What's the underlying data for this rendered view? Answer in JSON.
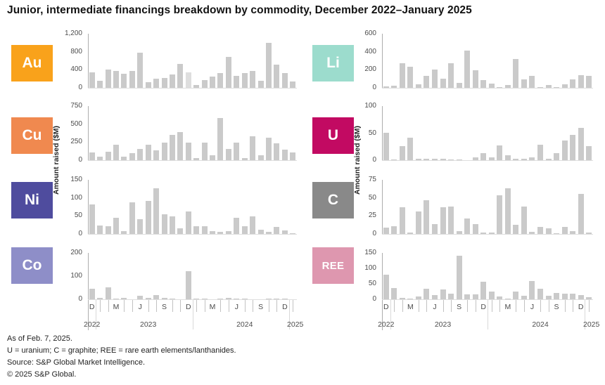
{
  "title": "Junior, intermediate financings breakdown by commodity, December 2022–January 2025",
  "y_axis_title": "Amount raised ($M)",
  "footer": {
    "as_of": "As of Feb. 7, 2025.",
    "abbreviations": "U = uranium; C = graphite; REE = rare earth elements/lanthanides.",
    "source": "Source: S&P Global Market Intelligence.",
    "copyright": "© 2025 S&P Global."
  },
  "panels": {
    "left": [
      "Au",
      "Cu",
      "Ni",
      "Co"
    ],
    "right": [
      "Li",
      "U",
      "C",
      "REE"
    ]
  },
  "bar_color": "#CACACA",
  "bar_color_light": "#DEDEDE",
  "xaxis": {
    "months": [
      "Dec 2022",
      "Jan 2023",
      "Feb 2023",
      "Mar 2023",
      "Apr 2023",
      "May 2023",
      "Jun 2023",
      "Jul 2023",
      "Aug 2023",
      "Sep 2023",
      "Oct 2023",
      "Nov 2023",
      "Dec 2023",
      "Jan 2024",
      "Feb 2024",
      "Mar 2024",
      "Apr 2024",
      "May 2024",
      "Jun 2024",
      "Jul 2024",
      "Aug 2024",
      "Sep 2024",
      "Oct 2024",
      "Nov 2024",
      "Dec 2024",
      "Jan 2025"
    ],
    "quarter_tick_indices": [
      0,
      3,
      6,
      9,
      12,
      15,
      18,
      21,
      24
    ],
    "quarter_tick_labels": [
      "D",
      "M",
      "J",
      "S",
      "D",
      "M",
      "J",
      "S",
      "D"
    ],
    "year_labels": [
      "2022",
      "2023",
      "2024",
      "2025"
    ],
    "year_boundaries_after": [
      0,
      12,
      24
    ]
  },
  "chart_data": [
    {
      "type": "bar",
      "commodity": "Au",
      "tile_color": "#F9A21B",
      "ylim": [
        0,
        1200
      ],
      "yticks": [
        0,
        400,
        800,
        1200
      ],
      "ytick_labels": [
        "0",
        "400",
        "800",
        "1,200"
      ],
      "light_indices": [
        12
      ],
      "values": [
        340,
        155,
        410,
        380,
        305,
        380,
        780,
        130,
        210,
        220,
        290,
        530,
        345,
        60,
        165,
        245,
        325,
        690,
        270,
        325,
        380,
        155,
        1005,
        510,
        325,
        140
      ]
    },
    {
      "type": "bar",
      "commodity": "Cu",
      "tile_color": "#F0894F",
      "ylim": [
        0,
        750
      ],
      "yticks": [
        0,
        250,
        500,
        750
      ],
      "ytick_labels": [
        "0",
        "250",
        "500",
        "750"
      ],
      "light_indices": [],
      "values": [
        110,
        45,
        115,
        210,
        45,
        100,
        155,
        210,
        140,
        245,
        355,
        385,
        240,
        25,
        245,
        65,
        580,
        155,
        240,
        30,
        335,
        65,
        315,
        235,
        150,
        110
      ]
    },
    {
      "type": "bar",
      "commodity": "Ni",
      "tile_color": "#4F4C9E",
      "ylim": [
        0,
        150
      ],
      "yticks": [
        0,
        50,
        100,
        150
      ],
      "ytick_labels": [
        "0",
        "50",
        "100",
        "150"
      ],
      "light_indices": [],
      "values": [
        82,
        24,
        21,
        44,
        8,
        87,
        41,
        92,
        127,
        55,
        49,
        15,
        62,
        22,
        22,
        7,
        5,
        8,
        44,
        21,
        48,
        11,
        5,
        20,
        9,
        2
      ]
    },
    {
      "type": "bar",
      "commodity": "Co",
      "tile_color": "#8E8EC8",
      "ylim": [
        0,
        200
      ],
      "yticks": [
        0,
        100,
        200
      ],
      "ytick_labels": [
        "0",
        "100",
        "200"
      ],
      "light_indices": [],
      "values": [
        46,
        7,
        50,
        1,
        6,
        0,
        15,
        6,
        19,
        6,
        1,
        0,
        120,
        1,
        2,
        0,
        4,
        7,
        2,
        1,
        0,
        0,
        3,
        4,
        1,
        0
      ]
    },
    {
      "type": "bar",
      "commodity": "Li",
      "tile_color": "#9CDCCD",
      "ylim": [
        0,
        600
      ],
      "yticks": [
        0,
        200,
        400,
        600
      ],
      "ytick_labels": [
        "0",
        "200",
        "400",
        "600"
      ],
      "light_indices": [],
      "values": [
        15,
        20,
        270,
        230,
        40,
        135,
        200,
        100,
        270,
        55,
        415,
        195,
        85,
        45,
        8,
        30,
        320,
        95,
        135,
        5,
        30,
        8,
        40,
        95,
        140,
        130
      ]
    },
    {
      "type": "bar",
      "commodity": "U",
      "tile_color": "#C20A62",
      "ylim": [
        0,
        100
      ],
      "yticks": [
        0,
        50,
        100
      ],
      "ytick_labels": [
        "0",
        "50",
        "100"
      ],
      "light_indices": [],
      "values": [
        50,
        1,
        26,
        42,
        2,
        2,
        3,
        2,
        1,
        1,
        0,
        5,
        13,
        5,
        27,
        9,
        2,
        2,
        5,
        28,
        3,
        13,
        36,
        47,
        60,
        26
      ]
    },
    {
      "type": "bar",
      "commodity": "C",
      "tile_color": "#898989",
      "ylim": [
        0,
        75
      ],
      "yticks": [
        0,
        25,
        50,
        75
      ],
      "ytick_labels": [
        "0",
        "25",
        "50",
        "75"
      ],
      "light_indices": [],
      "values": [
        9,
        11,
        37,
        2,
        31,
        47,
        14,
        37,
        38,
        4,
        21,
        14,
        2,
        2,
        54,
        63,
        13,
        38,
        3,
        10,
        8,
        1,
        10,
        4,
        56,
        2
      ]
    },
    {
      "type": "bar",
      "commodity": "REE",
      "tile_color": "#DE97AF",
      "ylim": [
        0,
        150
      ],
      "yticks": [
        0,
        50,
        100,
        150
      ],
      "ytick_labels": [
        "0",
        "50",
        "100",
        "150"
      ],
      "light_indices": [],
      "values": [
        80,
        37,
        4,
        2,
        8,
        33,
        14,
        32,
        19,
        140,
        17,
        16,
        57,
        26,
        9,
        2,
        26,
        12,
        58,
        35,
        12,
        20,
        18,
        19,
        13,
        7
      ]
    }
  ]
}
